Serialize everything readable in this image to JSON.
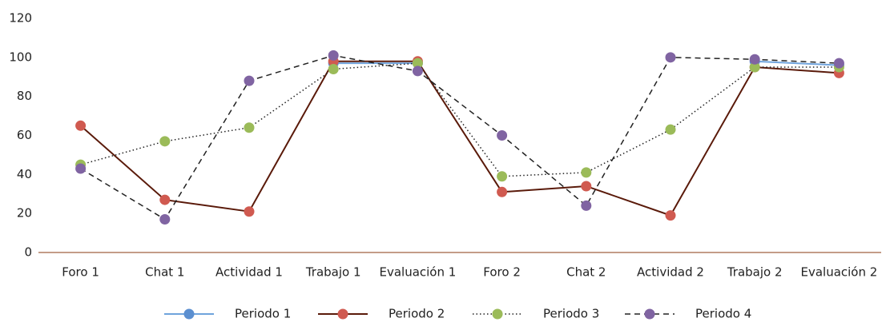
{
  "chart_data": {
    "type": "line",
    "categories": [
      "Foro 1",
      "Chat 1",
      "Actividad 1",
      "Trabajo 1",
      "Evaluación 1",
      "Foro 2",
      "Chat 2",
      "Actividad 2",
      "Trabajo 2",
      "Evaluación 2"
    ],
    "series": [
      {
        "name": "Periodo 1",
        "color": "#5b8fd0",
        "line_color": "#6fa3dc",
        "line_style": "solid",
        "values": [
          null,
          null,
          null,
          97,
          97,
          null,
          null,
          null,
          98,
          96
        ]
      },
      {
        "name": "Periodo 2",
        "color": "#d05a50",
        "line_color": "#5a1a0a",
        "line_style": "solid",
        "values": [
          65,
          27,
          21,
          98,
          98,
          31,
          34,
          19,
          95,
          92
        ]
      },
      {
        "name": "Periodo 3",
        "color": "#9bbb59",
        "line_color": "#222222",
        "line_style": "dotted",
        "values": [
          45,
          57,
          64,
          94,
          97,
          39,
          41,
          63,
          95,
          95
        ]
      },
      {
        "name": "Periodo 4",
        "color": "#8064a2",
        "line_color": "#222222",
        "line_style": "dashed",
        "values": [
          43,
          17,
          88,
          101,
          93,
          60,
          24,
          100,
          99,
          97
        ]
      }
    ],
    "ylim": [
      0,
      120
    ],
    "yticks": [
      0,
      20,
      40,
      60,
      80,
      100,
      120
    ],
    "grid": false,
    "legend": "bottom"
  }
}
